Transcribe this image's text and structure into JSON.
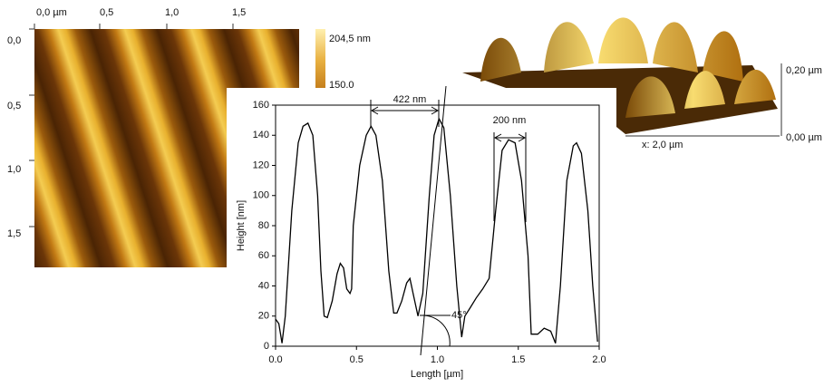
{
  "afm_image": {
    "top_labels": [
      "0,0 µm",
      "0,5",
      "1,0",
      "1,5"
    ],
    "left_labels": [
      "0,0",
      "0,5",
      "1,0",
      "1,5"
    ],
    "colorbar_labels": [
      "204,5 nm",
      "150,0"
    ]
  },
  "afm_3d": {
    "x_label": "x: 2,0 µm",
    "z_labels": [
      "0,20 µm",
      "0,00 µm"
    ]
  },
  "chart_data": {
    "type": "line",
    "x_label": "Length [µm]",
    "y_label": "Height [nm]",
    "color": "#000000",
    "x": [
      0.0,
      0.02,
      0.04,
      0.06,
      0.1,
      0.14,
      0.17,
      0.2,
      0.23,
      0.26,
      0.28,
      0.3,
      0.32,
      0.35,
      0.38,
      0.4,
      0.42,
      0.44,
      0.46,
      0.47,
      0.48,
      0.52,
      0.56,
      0.59,
      0.62,
      0.66,
      0.7,
      0.73,
      0.75,
      0.78,
      0.81,
      0.83,
      0.85,
      0.88,
      0.91,
      0.95,
      0.98,
      1.01,
      1.04,
      1.08,
      1.12,
      1.15,
      1.17,
      1.2,
      1.24,
      1.28,
      1.32,
      1.36,
      1.4,
      1.44,
      1.48,
      1.52,
      1.56,
      1.58,
      1.62,
      1.66,
      1.7,
      1.73,
      1.76,
      1.8,
      1.84,
      1.86,
      1.89,
      1.93,
      1.96,
      1.99
    ],
    "values": [
      18,
      15,
      2,
      20,
      90,
      135,
      146,
      148,
      140,
      100,
      50,
      20,
      19,
      30,
      48,
      55,
      52,
      38,
      35,
      38,
      80,
      120,
      140,
      146,
      140,
      110,
      50,
      22,
      22,
      30,
      42,
      45,
      35,
      20,
      35,
      100,
      140,
      151,
      145,
      100,
      40,
      6,
      20,
      25,
      32,
      38,
      45,
      90,
      130,
      137,
      135,
      110,
      60,
      8,
      8,
      12,
      10,
      2,
      40,
      110,
      133,
      135,
      128,
      90,
      40,
      3
    ],
    "xlim": [
      0,
      2
    ],
    "ylim": [
      0,
      160
    ],
    "xticks": [
      {
        "value": 0,
        "label": "0.0"
      },
      {
        "value": 0.5,
        "label": "0.5"
      },
      {
        "value": 1,
        "label": "1.0"
      },
      {
        "value": 1.5,
        "label": "1.5"
      },
      {
        "value": 2,
        "label": "2.0"
      }
    ],
    "yticks": [
      0,
      20,
      40,
      60,
      80,
      100,
      120,
      140,
      160
    ],
    "annotations": [
      "422 nm",
      "200 nm",
      "45°"
    ]
  }
}
